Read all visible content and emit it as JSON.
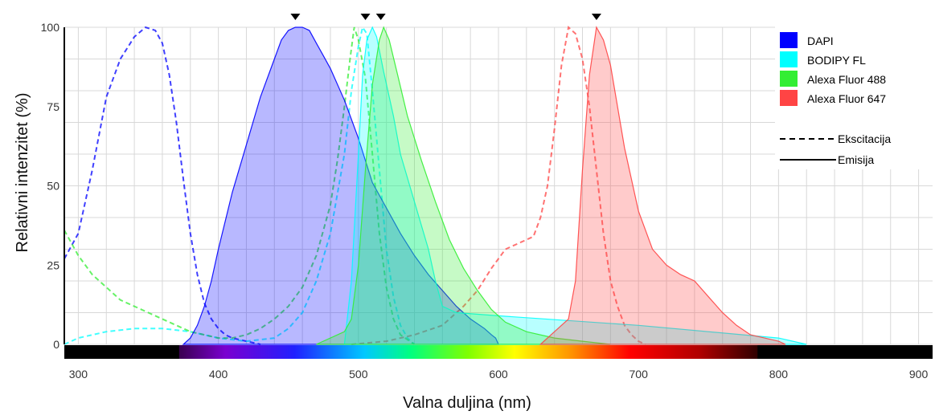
{
  "chart_data": {
    "type": "area",
    "title": "",
    "xlabel": "Valna duljina (nm)",
    "ylabel": "Relativni intenzitet (%)",
    "xlim": [
      290,
      910
    ],
    "ylim": [
      0,
      100
    ],
    "x_ticks": [
      300,
      400,
      500,
      600,
      700,
      800,
      900
    ],
    "y_ticks": [
      0,
      25,
      50,
      75,
      100
    ],
    "grid": true,
    "legend_position": "top-right",
    "peak_markers": [
      455,
      505,
      516,
      670
    ],
    "spectrum_bar": {
      "start": 372,
      "end": 785
    },
    "series": [
      {
        "name": "DAPI",
        "color": "#0000ff",
        "excitation": [
          [
            290,
            27
          ],
          [
            300,
            35
          ],
          [
            310,
            55
          ],
          [
            320,
            78
          ],
          [
            330,
            90
          ],
          [
            340,
            97
          ],
          [
            348,
            100
          ],
          [
            355,
            99
          ],
          [
            360,
            95
          ],
          [
            365,
            85
          ],
          [
            370,
            70
          ],
          [
            375,
            52
          ],
          [
            380,
            35
          ],
          [
            385,
            22
          ],
          [
            390,
            13
          ],
          [
            395,
            8
          ],
          [
            400,
            5
          ],
          [
            405,
            3
          ],
          [
            410,
            2
          ],
          [
            420,
            1
          ],
          [
            430,
            0
          ]
        ],
        "emission": [
          [
            375,
            0
          ],
          [
            380,
            2
          ],
          [
            385,
            6
          ],
          [
            390,
            12
          ],
          [
            395,
            20
          ],
          [
            400,
            30
          ],
          [
            410,
            48
          ],
          [
            420,
            63
          ],
          [
            430,
            78
          ],
          [
            440,
            90
          ],
          [
            445,
            96
          ],
          [
            450,
            99
          ],
          [
            455,
            100
          ],
          [
            460,
            100
          ],
          [
            465,
            99
          ],
          [
            470,
            95
          ],
          [
            475,
            91
          ],
          [
            480,
            87
          ],
          [
            490,
            77
          ],
          [
            500,
            65
          ],
          [
            510,
            51
          ],
          [
            520,
            43
          ],
          [
            530,
            35
          ],
          [
            540,
            28
          ],
          [
            550,
            22
          ],
          [
            560,
            17
          ],
          [
            570,
            12
          ],
          [
            580,
            8
          ],
          [
            590,
            5
          ],
          [
            595,
            3
          ],
          [
            598,
            2
          ],
          [
            600,
            0
          ]
        ]
      },
      {
        "name": "BODIPY FL",
        "color": "#00ffff",
        "excitation": [
          [
            290,
            0
          ],
          [
            300,
            2
          ],
          [
            320,
            4
          ],
          [
            340,
            5
          ],
          [
            360,
            5
          ],
          [
            380,
            4
          ],
          [
            400,
            2
          ],
          [
            420,
            1
          ],
          [
            440,
            2
          ],
          [
            450,
            5
          ],
          [
            460,
            10
          ],
          [
            470,
            20
          ],
          [
            480,
            35
          ],
          [
            490,
            60
          ],
          [
            495,
            80
          ],
          [
            500,
            94
          ],
          [
            503,
            100
          ],
          [
            506,
            98
          ],
          [
            510,
            80
          ],
          [
            515,
            55
          ],
          [
            520,
            30
          ],
          [
            525,
            15
          ],
          [
            530,
            6
          ],
          [
            535,
            2
          ],
          [
            540,
            0
          ]
        ],
        "emission": [
          [
            490,
            0
          ],
          [
            495,
            20
          ],
          [
            500,
            60
          ],
          [
            503,
            85
          ],
          [
            506,
            96
          ],
          [
            510,
            100
          ],
          [
            513,
            97
          ],
          [
            518,
            86
          ],
          [
            525,
            72
          ],
          [
            530,
            60
          ],
          [
            540,
            45
          ],
          [
            550,
            30
          ],
          [
            555,
            20
          ],
          [
            560,
            12
          ],
          [
            570,
            10
          ],
          [
            600,
            9
          ],
          [
            700,
            6
          ],
          [
            800,
            2
          ],
          [
            820,
            0
          ]
        ]
      },
      {
        "name": "Alexa Fluor 488",
        "color": "#33ee33",
        "excitation": [
          [
            290,
            36
          ],
          [
            300,
            28
          ],
          [
            310,
            22
          ],
          [
            320,
            18
          ],
          [
            330,
            14
          ],
          [
            340,
            12
          ],
          [
            350,
            10
          ],
          [
            360,
            8
          ],
          [
            370,
            6
          ],
          [
            380,
            4
          ],
          [
            390,
            3
          ],
          [
            400,
            2
          ],
          [
            410,
            2
          ],
          [
            420,
            3
          ],
          [
            430,
            5
          ],
          [
            440,
            8
          ],
          [
            450,
            12
          ],
          [
            460,
            18
          ],
          [
            470,
            28
          ],
          [
            480,
            44
          ],
          [
            485,
            58
          ],
          [
            490,
            75
          ],
          [
            494,
            90
          ],
          [
            497,
            100
          ],
          [
            500,
            96
          ],
          [
            505,
            84
          ],
          [
            510,
            60
          ],
          [
            515,
            35
          ],
          [
            520,
            18
          ],
          [
            525,
            8
          ],
          [
            530,
            3
          ],
          [
            540,
            0
          ]
        ],
        "emission": [
          [
            470,
            0
          ],
          [
            480,
            2
          ],
          [
            490,
            4
          ],
          [
            495,
            8
          ],
          [
            500,
            25
          ],
          [
            505,
            55
          ],
          [
            510,
            82
          ],
          [
            515,
            96
          ],
          [
            518,
            100
          ],
          [
            522,
            96
          ],
          [
            528,
            85
          ],
          [
            535,
            72
          ],
          [
            545,
            58
          ],
          [
            555,
            45
          ],
          [
            565,
            33
          ],
          [
            575,
            24
          ],
          [
            585,
            17
          ],
          [
            595,
            11
          ],
          [
            605,
            7
          ],
          [
            620,
            4
          ],
          [
            640,
            2
          ],
          [
            660,
            1
          ],
          [
            680,
            0
          ]
        ]
      },
      {
        "name": "Alexa Fluor 647",
        "color": "#ff4444",
        "excitation": [
          [
            495,
            0
          ],
          [
            520,
            1
          ],
          [
            540,
            3
          ],
          [
            560,
            6
          ],
          [
            575,
            12
          ],
          [
            585,
            17
          ],
          [
            595,
            24
          ],
          [
            605,
            30
          ],
          [
            615,
            32
          ],
          [
            625,
            34
          ],
          [
            630,
            40
          ],
          [
            635,
            50
          ],
          [
            640,
            68
          ],
          [
            645,
            88
          ],
          [
            650,
            100
          ],
          [
            655,
            98
          ],
          [
            660,
            90
          ],
          [
            665,
            75
          ],
          [
            670,
            55
          ],
          [
            675,
            35
          ],
          [
            680,
            20
          ],
          [
            685,
            12
          ],
          [
            690,
            6
          ],
          [
            695,
            3
          ],
          [
            700,
            1
          ],
          [
            705,
            0
          ]
        ],
        "emission": [
          [
            630,
            0
          ],
          [
            640,
            4
          ],
          [
            650,
            8
          ],
          [
            655,
            20
          ],
          [
            660,
            55
          ],
          [
            665,
            85
          ],
          [
            670,
            100
          ],
          [
            675,
            96
          ],
          [
            680,
            88
          ],
          [
            690,
            62
          ],
          [
            700,
            42
          ],
          [
            710,
            30
          ],
          [
            720,
            25
          ],
          [
            730,
            22
          ],
          [
            740,
            20
          ],
          [
            750,
            15
          ],
          [
            760,
            10
          ],
          [
            770,
            6
          ],
          [
            780,
            3
          ],
          [
            790,
            2
          ],
          [
            800,
            1
          ],
          [
            805,
            0
          ]
        ]
      }
    ],
    "line_styles": [
      {
        "label": "Ekscitacija",
        "style": "dashed"
      },
      {
        "label": "Emisija",
        "style": "solid"
      }
    ]
  }
}
